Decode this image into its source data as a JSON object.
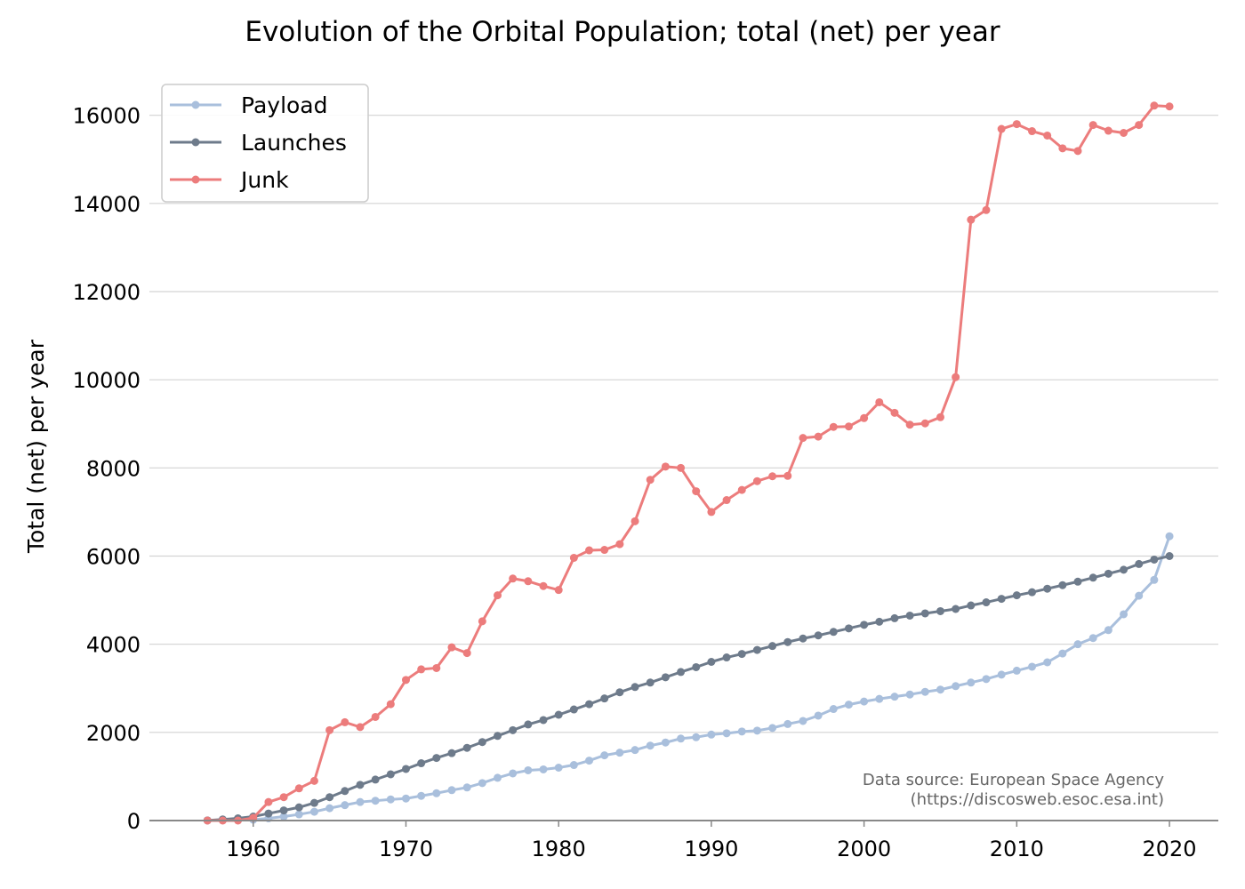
{
  "colors": {
    "payload": "#a9bfdc",
    "launches": "#6e7b8b",
    "junk": "#ec7c7c"
  },
  "source_note": {
    "line1": "Data source: European Space Agency",
    "line2": "(https://discosweb.esoc.esa.int)"
  },
  "chart_data": {
    "type": "line",
    "title": "Evolution of the Orbital Population; total (net) per year",
    "xlabel": "",
    "ylabel": "Total (net) per year",
    "xlim": [
      1953.2,
      2023.2
    ],
    "ylim": [
      0,
      16800
    ],
    "xticks": [
      1960,
      1970,
      1980,
      1990,
      2000,
      2010,
      2020
    ],
    "yticks": [
      0,
      2000,
      4000,
      6000,
      8000,
      10000,
      12000,
      14000,
      16000
    ],
    "grid": "horizontal",
    "legend_position": "top-left",
    "x": [
      1957,
      1958,
      1959,
      1960,
      1961,
      1962,
      1963,
      1964,
      1965,
      1966,
      1967,
      1968,
      1969,
      1970,
      1971,
      1972,
      1973,
      1974,
      1975,
      1976,
      1977,
      1978,
      1979,
      1980,
      1981,
      1982,
      1983,
      1984,
      1985,
      1986,
      1987,
      1988,
      1989,
      1990,
      1991,
      1992,
      1993,
      1994,
      1995,
      1996,
      1997,
      1998,
      1999,
      2000,
      2001,
      2002,
      2003,
      2004,
      2005,
      2006,
      2007,
      2008,
      2009,
      2010,
      2011,
      2012,
      2013,
      2014,
      2015,
      2016,
      2017,
      2018,
      2019,
      2020
    ],
    "series": [
      {
        "name": "Payload",
        "color": "#a9bfdc",
        "values": [
          2,
          5,
          10,
          20,
          50,
          90,
          140,
          200,
          280,
          350,
          420,
          450,
          480,
          500,
          560,
          620,
          690,
          750,
          850,
          970,
          1070,
          1140,
          1160,
          1200,
          1260,
          1360,
          1480,
          1540,
          1600,
          1700,
          1770,
          1860,
          1890,
          1950,
          1980,
          2020,
          2040,
          2100,
          2190,
          2260,
          2380,
          2530,
          2630,
          2700,
          2760,
          2810,
          2860,
          2920,
          2970,
          3050,
          3130,
          3210,
          3310,
          3400,
          3490,
          3590,
          3790,
          4000,
          4140,
          4320,
          4680,
          5100,
          5460,
          6450
        ]
      },
      {
        "name": "Launches",
        "color": "#6e7b8b",
        "values": [
          3,
          25,
          50,
          90,
          160,
          230,
          300,
          400,
          530,
          670,
          810,
          930,
          1050,
          1170,
          1300,
          1420,
          1530,
          1650,
          1780,
          1920,
          2050,
          2180,
          2280,
          2400,
          2520,
          2640,
          2770,
          2910,
          3030,
          3130,
          3250,
          3370,
          3480,
          3600,
          3700,
          3780,
          3870,
          3960,
          4050,
          4130,
          4200,
          4280,
          4360,
          4440,
          4510,
          4590,
          4650,
          4700,
          4750,
          4800,
          4880,
          4950,
          5030,
          5110,
          5180,
          5260,
          5340,
          5420,
          5510,
          5600,
          5690,
          5820,
          5920,
          6000
        ]
      },
      {
        "name": "Junk",
        "color": "#ec7c7c",
        "values": [
          0,
          0,
          0,
          60,
          420,
          530,
          730,
          900,
          2050,
          2230,
          2120,
          2350,
          2640,
          3190,
          3430,
          3460,
          3930,
          3800,
          4520,
          5110,
          5490,
          5430,
          5320,
          5230,
          5960,
          6130,
          6140,
          6270,
          6790,
          7730,
          8030,
          8000,
          7470,
          7000,
          7270,
          7500,
          7700,
          7810,
          7820,
          8680,
          8710,
          8930,
          8940,
          9130,
          9490,
          9250,
          8980,
          9010,
          9150,
          10060,
          13630,
          13850,
          15690,
          15800,
          15640,
          15540,
          15250,
          15190,
          15780,
          15650,
          15600,
          15780,
          16220,
          16200
        ]
      }
    ]
  }
}
